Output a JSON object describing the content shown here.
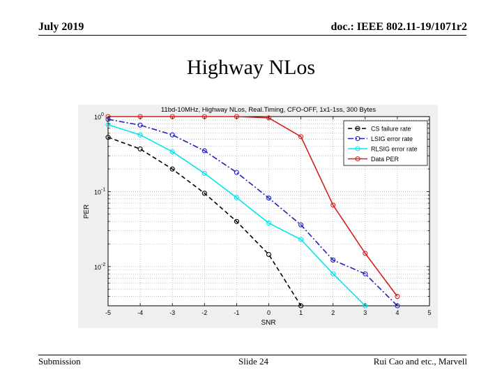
{
  "header": {
    "date": "July 2019",
    "doc_id": "doc.: IEEE 802.11-19/1071r2"
  },
  "slide": {
    "title": "Highway NLos"
  },
  "footer": {
    "left": "Submission",
    "center": "Slide 24",
    "right": "Rui Cao and etc., Marvell"
  },
  "colors": {
    "cs": "#000000",
    "lsig": "#1f1fbf",
    "rlsig": "#00e5ee",
    "data": "#d41f1f"
  },
  "chart_data": {
    "type": "line",
    "title": "11bd-10MHz, Highway NLos, Real.Timing, CFO-OFF, 1x1-1ss, 300 Bytes",
    "xlabel": "SNR",
    "ylabel": "PER",
    "xlim": [
      -5,
      5
    ],
    "ylim": [
      0.003,
      1
    ],
    "yscale": "log",
    "grid": true,
    "legend_position": "top-right",
    "x_ticks": [
      "-5",
      "-4",
      "-3",
      "-2",
      "-1",
      "0",
      "1",
      "2",
      "3",
      "4",
      "5"
    ],
    "y_tick_labels": [
      {
        "base": "10",
        "exp": "0",
        "value": 1
      },
      {
        "base": "10",
        "exp": "-1",
        "value": 0.1
      },
      {
        "base": "10",
        "exp": "-2",
        "value": 0.01
      }
    ],
    "series": [
      {
        "name": "CS failure rate",
        "color": "#000000",
        "dash": "6,4",
        "x": [
          -5,
          -4,
          -3,
          -2,
          -1,
          0,
          1
        ],
        "y": [
          0.53,
          0.37,
          0.2,
          0.095,
          0.04,
          0.0145,
          0.003
        ]
      },
      {
        "name": "LSIG error rate",
        "color": "#1f1fbf",
        "dash": "8,3,2,3",
        "x": [
          -5,
          -4,
          -3,
          -2,
          -1,
          0,
          1,
          2,
          3,
          4
        ],
        "y": [
          0.92,
          0.77,
          0.57,
          0.35,
          0.18,
          0.082,
          0.036,
          0.0122,
          0.008,
          0.003
        ]
      },
      {
        "name": "RLSIG error rate",
        "color": "#00e5ee",
        "dash": "",
        "x": [
          -5,
          -4,
          -3,
          -2,
          -1,
          0,
          1,
          2,
          3
        ],
        "y": [
          0.78,
          0.57,
          0.34,
          0.175,
          0.083,
          0.038,
          0.023,
          0.008,
          0.003
        ]
      },
      {
        "name": "Data PER",
        "color": "#d41f1f",
        "dash": "",
        "x": [
          -5,
          -4,
          -3,
          -2,
          -1,
          0,
          1,
          2,
          3,
          4
        ],
        "y": [
          1,
          1,
          1,
          1,
          1,
          0.96,
          0.54,
          0.066,
          0.015,
          0.004
        ]
      }
    ]
  }
}
